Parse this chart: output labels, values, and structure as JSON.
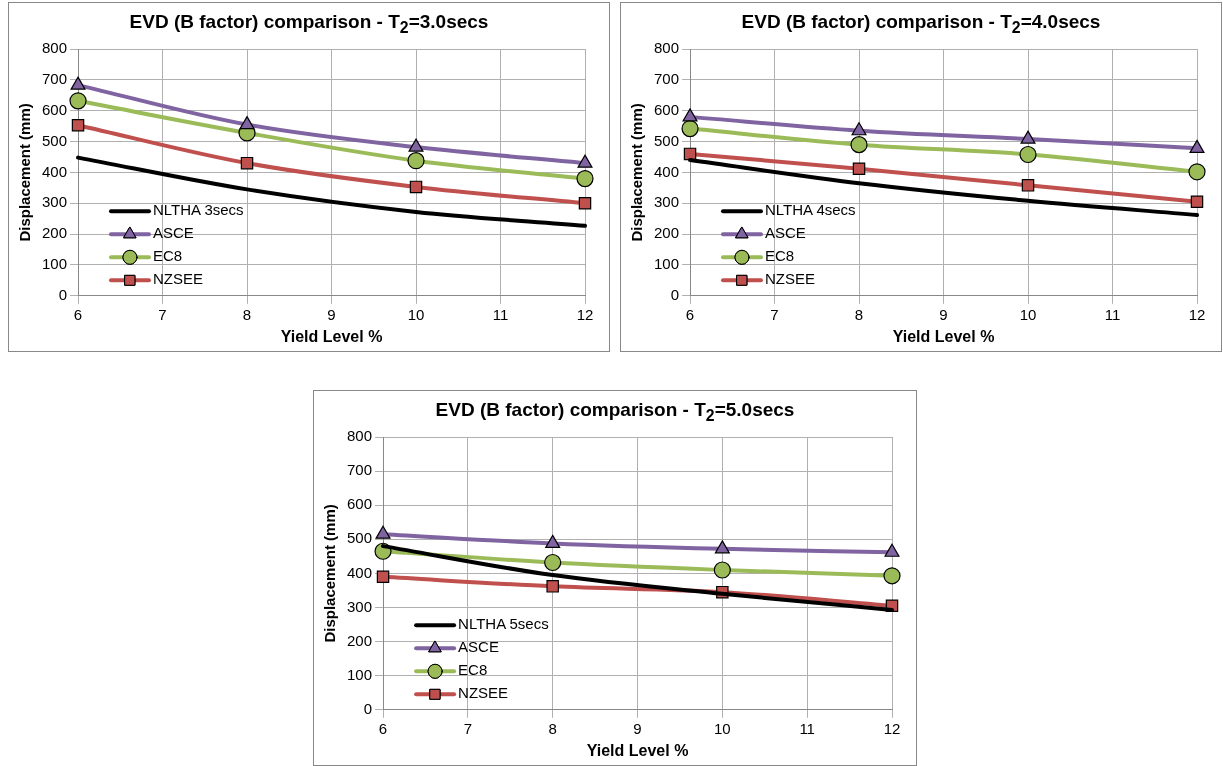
{
  "chart_data": [
    {
      "type": "line",
      "title": "EVD (B factor) comparison - T$_{2}$=3.0secs",
      "xlabel": "Yield Level %",
      "ylabel": "Displacement (mm)",
      "x": [
        6,
        8,
        10,
        12
      ],
      "xlim": [
        6,
        12
      ],
      "xticks": [
        6,
        7,
        8,
        9,
        10,
        11,
        12
      ],
      "ylim": [
        0,
        800
      ],
      "yticks": [
        0,
        100,
        200,
        300,
        400,
        500,
        600,
        700,
        800
      ],
      "grid": true,
      "legend": "bottom left",
      "series": [
        {
          "name": "NLTHA 3secs",
          "color": "#000000",
          "marker": "none",
          "values": [
            448,
            345,
            272,
            227
          ]
        },
        {
          "name": "ASCE",
          "color": "#8064a2",
          "marker": "triangle",
          "values": [
            683,
            555,
            482,
            430
          ]
        },
        {
          "name": "EC8",
          "color": "#9bbb59",
          "marker": "circle",
          "values": [
            632,
            528,
            438,
            380
          ]
        },
        {
          "name": "NZSEE",
          "color": "#c0504d",
          "marker": "square",
          "values": [
            553,
            430,
            353,
            300
          ]
        }
      ]
    },
    {
      "type": "line",
      "title": "EVD (B factor) comparison - T$_{2}$=4.0secs",
      "xlabel": "Yield Level %",
      "ylabel": "Displacement (mm)",
      "x": [
        6,
        8,
        10,
        12
      ],
      "xlim": [
        6,
        12
      ],
      "xticks": [
        6,
        7,
        8,
        9,
        10,
        11,
        12
      ],
      "ylim": [
        0,
        800
      ],
      "yticks": [
        0,
        100,
        200,
        300,
        400,
        500,
        600,
        700,
        800
      ],
      "grid": true,
      "legend": "bottom left",
      "series": [
        {
          "name": "NLTHA 4secs",
          "color": "#000000",
          "marker": "none",
          "values": [
            440,
            365,
            308,
            262
          ]
        },
        {
          "name": "ASCE",
          "color": "#8064a2",
          "marker": "triangle",
          "values": [
            580,
            535,
            508,
            478
          ]
        },
        {
          "name": "EC8",
          "color": "#9bbb59",
          "marker": "circle",
          "values": [
            542,
            490,
            458,
            402
          ]
        },
        {
          "name": "NZSEE",
          "color": "#c0504d",
          "marker": "square",
          "values": [
            460,
            412,
            358,
            305
          ]
        }
      ]
    },
    {
      "type": "line",
      "title": "EVD (B factor) comparison - T$_{2}$=5.0secs",
      "xlabel": "Yield Level %",
      "ylabel": "Displacement (mm)",
      "x": [
        6,
        8,
        10,
        12
      ],
      "xlim": [
        6,
        12
      ],
      "xticks": [
        6,
        7,
        8,
        9,
        10,
        11,
        12
      ],
      "ylim": [
        0,
        800
      ],
      "yticks": [
        0,
        100,
        200,
        300,
        400,
        500,
        600,
        700,
        800
      ],
      "grid": true,
      "legend": "bottom left",
      "series": [
        {
          "name": "NLTHA 5secs",
          "color": "#000000",
          "marker": "none",
          "values": [
            480,
            395,
            340,
            293
          ]
        },
        {
          "name": "ASCE",
          "color": "#8064a2",
          "marker": "triangle",
          "values": [
            515,
            488,
            472,
            462
          ]
        },
        {
          "name": "EC8",
          "color": "#9bbb59",
          "marker": "circle",
          "values": [
            465,
            432,
            410,
            393
          ]
        },
        {
          "name": "NZSEE",
          "color": "#c0504d",
          "marker": "square",
          "values": [
            390,
            362,
            345,
            305
          ]
        }
      ]
    }
  ]
}
